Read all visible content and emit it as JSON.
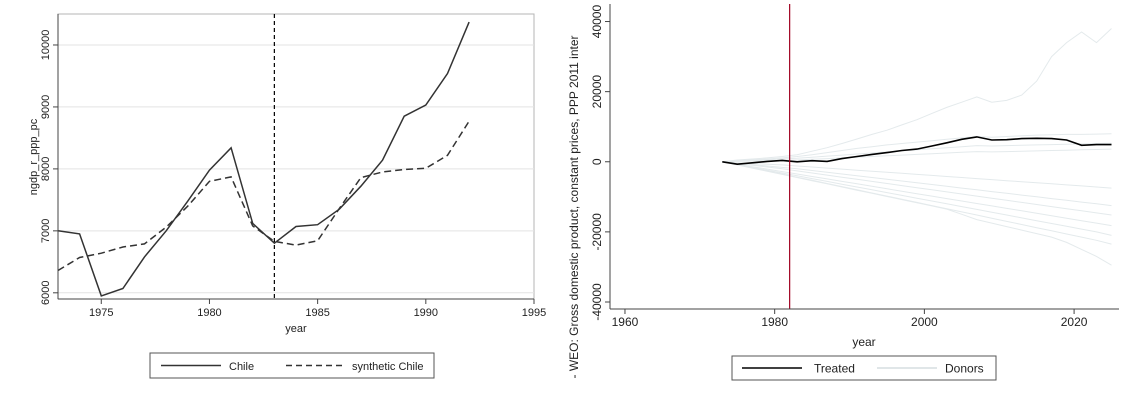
{
  "chart_data": [
    {
      "type": "line",
      "title": "",
      "xlabel": "year",
      "ylabel": "ngdp_r_ppp_pc",
      "xlim": [
        1973,
        1995
      ],
      "ylim": [
        5900,
        10500
      ],
      "xticks": [
        "1975",
        "1980",
        "1985",
        "1990",
        "1995"
      ],
      "yticks": [
        "6000",
        "7000",
        "8000",
        "9000",
        "10000"
      ],
      "vline": {
        "x": 1983,
        "style": "dashed",
        "color": "#000000"
      },
      "x": [
        1973,
        1974,
        1975,
        1976,
        1977,
        1978,
        1979,
        1980,
        1981,
        1982,
        1983,
        1984,
        1985,
        1986,
        1987,
        1988,
        1989,
        1990,
        1991,
        1992
      ],
      "series": [
        {
          "name": "Chile",
          "style": "solid",
          "color": "#333333",
          "values": [
            7000,
            6950,
            5950,
            6070,
            6580,
            7000,
            7480,
            7980,
            8340,
            7120,
            6800,
            7070,
            7100,
            7350,
            7720,
            8140,
            8850,
            9030,
            9540,
            10370
          ]
        },
        {
          "name": "synthetic Chile",
          "style": "dashed",
          "color": "#333333",
          "values": [
            6360,
            6570,
            6640,
            6740,
            6790,
            7060,
            7400,
            7800,
            7870,
            7080,
            6830,
            6770,
            6840,
            7360,
            7860,
            7950,
            7990,
            8010,
            8220,
            8770
          ]
        }
      ],
      "legend_position": "bottom",
      "grid": true
    },
    {
      "type": "line",
      "title": "",
      "xlabel": "year",
      "ylabel": "- WEO: Gross domestic product, constant prices, PPP 2011 inter",
      "xlim": [
        1958,
        2026
      ],
      "ylim": [
        -42000,
        45000
      ],
      "xticks": [
        "1960",
        "1980",
        "2000",
        "2020"
      ],
      "yticks": [
        "-40000",
        "-20000",
        "0",
        "20000",
        "40000"
      ],
      "vline": {
        "x": 1982,
        "style": "solid",
        "color": "#a00020"
      },
      "x": [
        1973,
        1975,
        1977,
        1979,
        1981,
        1983,
        1985,
        1987,
        1989,
        1991,
        1993,
        1995,
        1997,
        1999,
        2001,
        2003,
        2005,
        2007,
        2009,
        2011,
        2013,
        2015,
        2017,
        2019,
        2021,
        2023,
        2025
      ],
      "series": [
        {
          "name": "Treated",
          "color": "#000000",
          "values": [
            0,
            -700,
            -300,
            100,
            400,
            0,
            300,
            100,
            900,
            1500,
            2100,
            2600,
            3200,
            3600,
            4500,
            5400,
            6400,
            7100,
            6200,
            6300,
            6600,
            6700,
            6600,
            6200,
            4700,
            4900,
            4900
          ]
        },
        {
          "name": "Donors",
          "color": "#e4eaec",
          "values": [
            0,
            500,
            800,
            1100,
            1500,
            2000,
            3000,
            4000,
            5200,
            6500,
            7800,
            9000,
            10500,
            12000,
            13800,
            15500,
            17000,
            18500,
            17000,
            17500,
            19000,
            23000,
            30000,
            34000,
            37000,
            34000,
            38000
          ]
        },
        {
          "name": "",
          "color": "#e4eaec",
          "values": [
            0,
            300,
            600,
            800,
            1100,
            1500,
            2000,
            2600,
            3200,
            3800,
            4300,
            4800,
            5200,
            5600,
            6000,
            6400,
            6800,
            7200,
            7000,
            7200,
            7400,
            7600,
            7700,
            7800,
            7800,
            7900,
            8000
          ]
        },
        {
          "name": "",
          "color": "#e4eaec",
          "values": [
            0,
            200,
            400,
            600,
            800,
            1000,
            1300,
            1600,
            1900,
            2200,
            2500,
            2800,
            3100,
            3400,
            3700,
            4000,
            4300,
            4600,
            4500,
            4600,
            4700,
            4800,
            4900,
            5000,
            5100,
            5200,
            5300
          ]
        },
        {
          "name": "",
          "color": "#e4eaec",
          "values": [
            0,
            100,
            200,
            300,
            400,
            500,
            700,
            900,
            1100,
            1300,
            1500,
            1700,
            1900,
            2100,
            2300,
            2500,
            2700,
            2900,
            2800,
            2900,
            3000,
            3100,
            3200,
            3300,
            3400,
            3500,
            3600
          ]
        },
        {
          "name": "",
          "color": "#e4eaec",
          "values": [
            0,
            -300,
            -500,
            -700,
            -900,
            -1200,
            -1500,
            -1800,
            -2100,
            -2400,
            -2700,
            -3000,
            -3300,
            -3600,
            -3900,
            -4200,
            -4500,
            -4800,
            -5100,
            -5400,
            -5700,
            -6000,
            -6300,
            -6600,
            -6900,
            -7200,
            -7500
          ]
        },
        {
          "name": "",
          "color": "#e4eaec",
          "values": [
            0,
            -400,
            -800,
            -1200,
            -1600,
            -2000,
            -2500,
            -3000,
            -3500,
            -4000,
            -4500,
            -5000,
            -5500,
            -6000,
            -6500,
            -7000,
            -7500,
            -8000,
            -8500,
            -9000,
            -9500,
            -10000,
            -10500,
            -11000,
            -11500,
            -12000,
            -12500
          ]
        },
        {
          "name": "",
          "color": "#e4eaec",
          "values": [
            0,
            -500,
            -1000,
            -1500,
            -2000,
            -2600,
            -3200,
            -3800,
            -4400,
            -5000,
            -5600,
            -6200,
            -6800,
            -7400,
            -8000,
            -8600,
            -9200,
            -9800,
            -10400,
            -11000,
            -11600,
            -12200,
            -12800,
            -13400,
            -14000,
            -14600,
            -15200
          ]
        },
        {
          "name": "",
          "color": "#e4eaec",
          "values": [
            0,
            -700,
            -1400,
            -2100,
            -2800,
            -3500,
            -4200,
            -4900,
            -5600,
            -6300,
            -7000,
            -7700,
            -8400,
            -9100,
            -9800,
            -10500,
            -11200,
            -11900,
            -12600,
            -13300,
            -14000,
            -14700,
            -15400,
            -16100,
            -16800,
            -17500,
            -18200
          ]
        },
        {
          "name": "",
          "color": "#e4eaec",
          "values": [
            0,
            -800,
            -1600,
            -2400,
            -3200,
            -4000,
            -4800,
            -5600,
            -6400,
            -7200,
            -8000,
            -8800,
            -9600,
            -10400,
            -11200,
            -12000,
            -12800,
            -13600,
            -14400,
            -15200,
            -16000,
            -16800,
            -17600,
            -18400,
            -19200,
            -20000,
            -21000
          ]
        },
        {
          "name": "",
          "color": "#e4eaec",
          "values": [
            0,
            -800,
            -1700,
            -2600,
            -3500,
            -4400,
            -5300,
            -6200,
            -7100,
            -8000,
            -8900,
            -9800,
            -10700,
            -11600,
            -12500,
            -13400,
            -14300,
            -15200,
            -16100,
            -17000,
            -17900,
            -18800,
            -19700,
            -20600,
            -21500,
            -22400,
            -23500
          ]
        },
        {
          "name": "",
          "color": "#e4eaec",
          "values": [
            0,
            -900,
            -1800,
            -2700,
            -3600,
            -4500,
            -5400,
            -6300,
            -7200,
            -8100,
            -9000,
            -9900,
            -10800,
            -11700,
            -12600,
            -13500,
            -15000,
            -16500,
            -17500,
            -18500,
            -19500,
            -20500,
            -21500,
            -23000,
            -25000,
            -27000,
            -29500
          ]
        }
      ],
      "legend_position": "bottom",
      "grid": false
    }
  ]
}
